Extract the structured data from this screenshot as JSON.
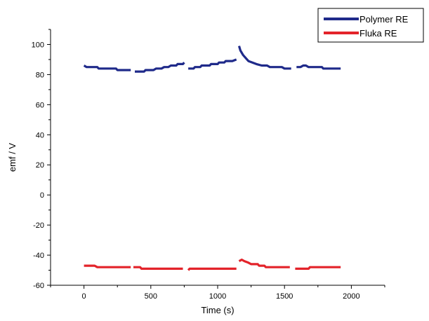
{
  "chart_data": {
    "type": "line",
    "title": "",
    "xlabel": "Time (s)",
    "ylabel": "emf / V",
    "xlim": [
      -250,
      2250
    ],
    "ylim": [
      -60,
      110
    ],
    "xticks": [
      0,
      500,
      1000,
      1500,
      2000
    ],
    "yticks": [
      -60,
      -40,
      -20,
      0,
      20,
      40,
      60,
      80,
      100
    ],
    "grid": false,
    "legend": "top-right",
    "series": [
      {
        "name": "Polymer RE",
        "color": "#1f2a8a",
        "segments": [
          [
            [
              0,
              86
            ],
            [
              20,
              85
            ],
            [
              100,
              85
            ],
            [
              110,
              84
            ],
            [
              240,
              84
            ],
            [
              250,
              83
            ],
            [
              350,
              83
            ]
          ],
          [
            [
              380,
              82
            ],
            [
              450,
              82
            ],
            [
              460,
              83
            ],
            [
              520,
              83
            ],
            [
              540,
              84
            ],
            [
              580,
              84
            ],
            [
              600,
              85
            ],
            [
              630,
              85
            ],
            [
              650,
              86
            ],
            [
              690,
              86
            ],
            [
              700,
              87
            ],
            [
              740,
              87
            ],
            [
              750,
              88
            ]
          ],
          [
            [
              780,
              84
            ],
            [
              820,
              84
            ],
            [
              830,
              85
            ],
            [
              870,
              85
            ],
            [
              880,
              86
            ],
            [
              940,
              86
            ],
            [
              950,
              87
            ],
            [
              1000,
              87
            ],
            [
              1010,
              88
            ],
            [
              1050,
              88
            ],
            [
              1060,
              89
            ],
            [
              1110,
              89
            ],
            [
              1140,
              90
            ]
          ],
          [
            [
              1160,
              99
            ],
            [
              1170,
              96
            ],
            [
              1190,
              93
            ],
            [
              1210,
              91
            ],
            [
              1230,
              89
            ],
            [
              1260,
              88
            ],
            [
              1290,
              87
            ],
            [
              1330,
              86
            ],
            [
              1370,
              86
            ],
            [
              1390,
              85
            ],
            [
              1480,
              85
            ],
            [
              1500,
              84
            ],
            [
              1550,
              84
            ]
          ],
          [
            [
              1590,
              85
            ],
            [
              1620,
              85
            ],
            [
              1640,
              86
            ],
            [
              1660,
              86
            ],
            [
              1680,
              85
            ],
            [
              1780,
              85
            ],
            [
              1790,
              84
            ],
            [
              1920,
              84
            ]
          ]
        ]
      },
      {
        "name": "Fluka RE",
        "color": "#e3232a",
        "segments": [
          [
            [
              0,
              -47
            ],
            [
              80,
              -47
            ],
            [
              100,
              -48
            ],
            [
              350,
              -48
            ]
          ],
          [
            [
              370,
              -48
            ],
            [
              420,
              -48
            ],
            [
              430,
              -49
            ],
            [
              740,
              -49
            ]
          ],
          [
            [
              780,
              -50
            ],
            [
              790,
              -49
            ],
            [
              1140,
              -49
            ]
          ],
          [
            [
              1160,
              -44
            ],
            [
              1180,
              -43
            ],
            [
              1200,
              -44
            ],
            [
              1230,
              -45
            ],
            [
              1250,
              -46
            ],
            [
              1300,
              -46
            ],
            [
              1310,
              -47
            ],
            [
              1350,
              -47
            ],
            [
              1360,
              -48
            ],
            [
              1540,
              -48
            ]
          ],
          [
            [
              1580,
              -49
            ],
            [
              1680,
              -49
            ],
            [
              1690,
              -48
            ],
            [
              1920,
              -48
            ]
          ]
        ]
      }
    ]
  }
}
